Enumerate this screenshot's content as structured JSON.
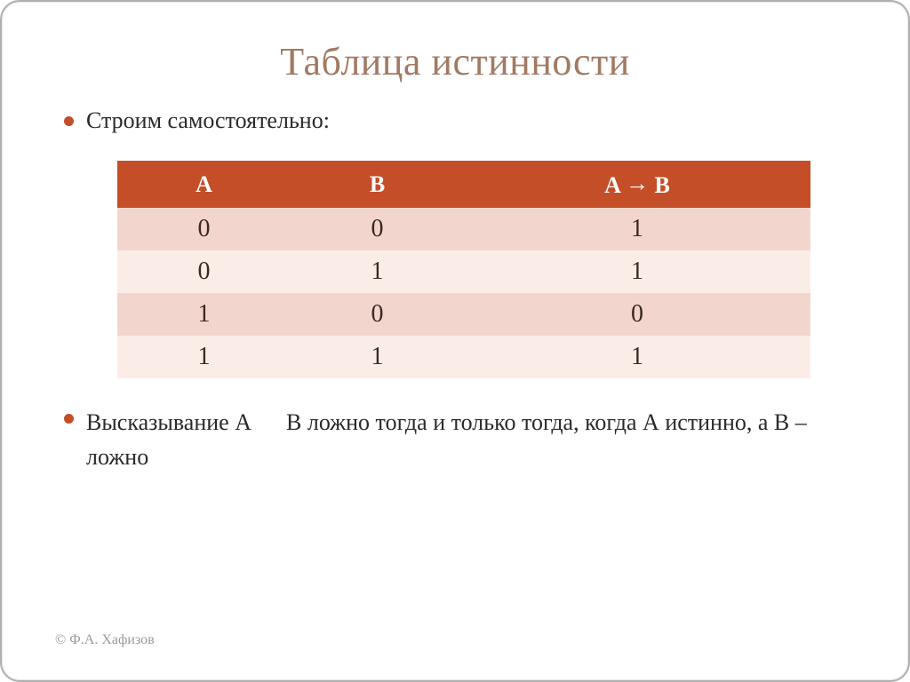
{
  "title": {
    "text": "Таблица истинности",
    "color": "#a17a64",
    "fontsize": 44
  },
  "bullet": {
    "color": "#c44e27",
    "text_color": "#2a2a2a",
    "fontsize": 26
  },
  "bullet1": "Строим самостоятельно:",
  "bullet2_prefix": "Высказывание  А",
  "bullet2_suffix": "В ложно тогда и только тогда, когда А истинно, а В – ложно",
  "table": {
    "type": "table",
    "columns": [
      "А",
      "В",
      "A → B"
    ],
    "col_arrow_parts": {
      "left": "A ",
      "arrow": "→",
      "right": " B"
    },
    "col_widths_pct": [
      25,
      25,
      50
    ],
    "rows": [
      [
        "0",
        "0",
        "1"
      ],
      [
        "0",
        "1",
        "1"
      ],
      [
        "1",
        "0",
        "0"
      ],
      [
        "1",
        "1",
        "1"
      ]
    ],
    "header_bg": "#c44e27",
    "header_fg": "#ffffff",
    "row_bg_odd": "#f2d6ce",
    "row_bg_even": "#faede8",
    "cell_fg": "#3a2a22",
    "header_fontsize": 26,
    "cell_fontsize": 28
  },
  "footer": {
    "text": "© Ф.А. Хафизов",
    "color": "#9a9a9a",
    "fontsize": 16
  }
}
